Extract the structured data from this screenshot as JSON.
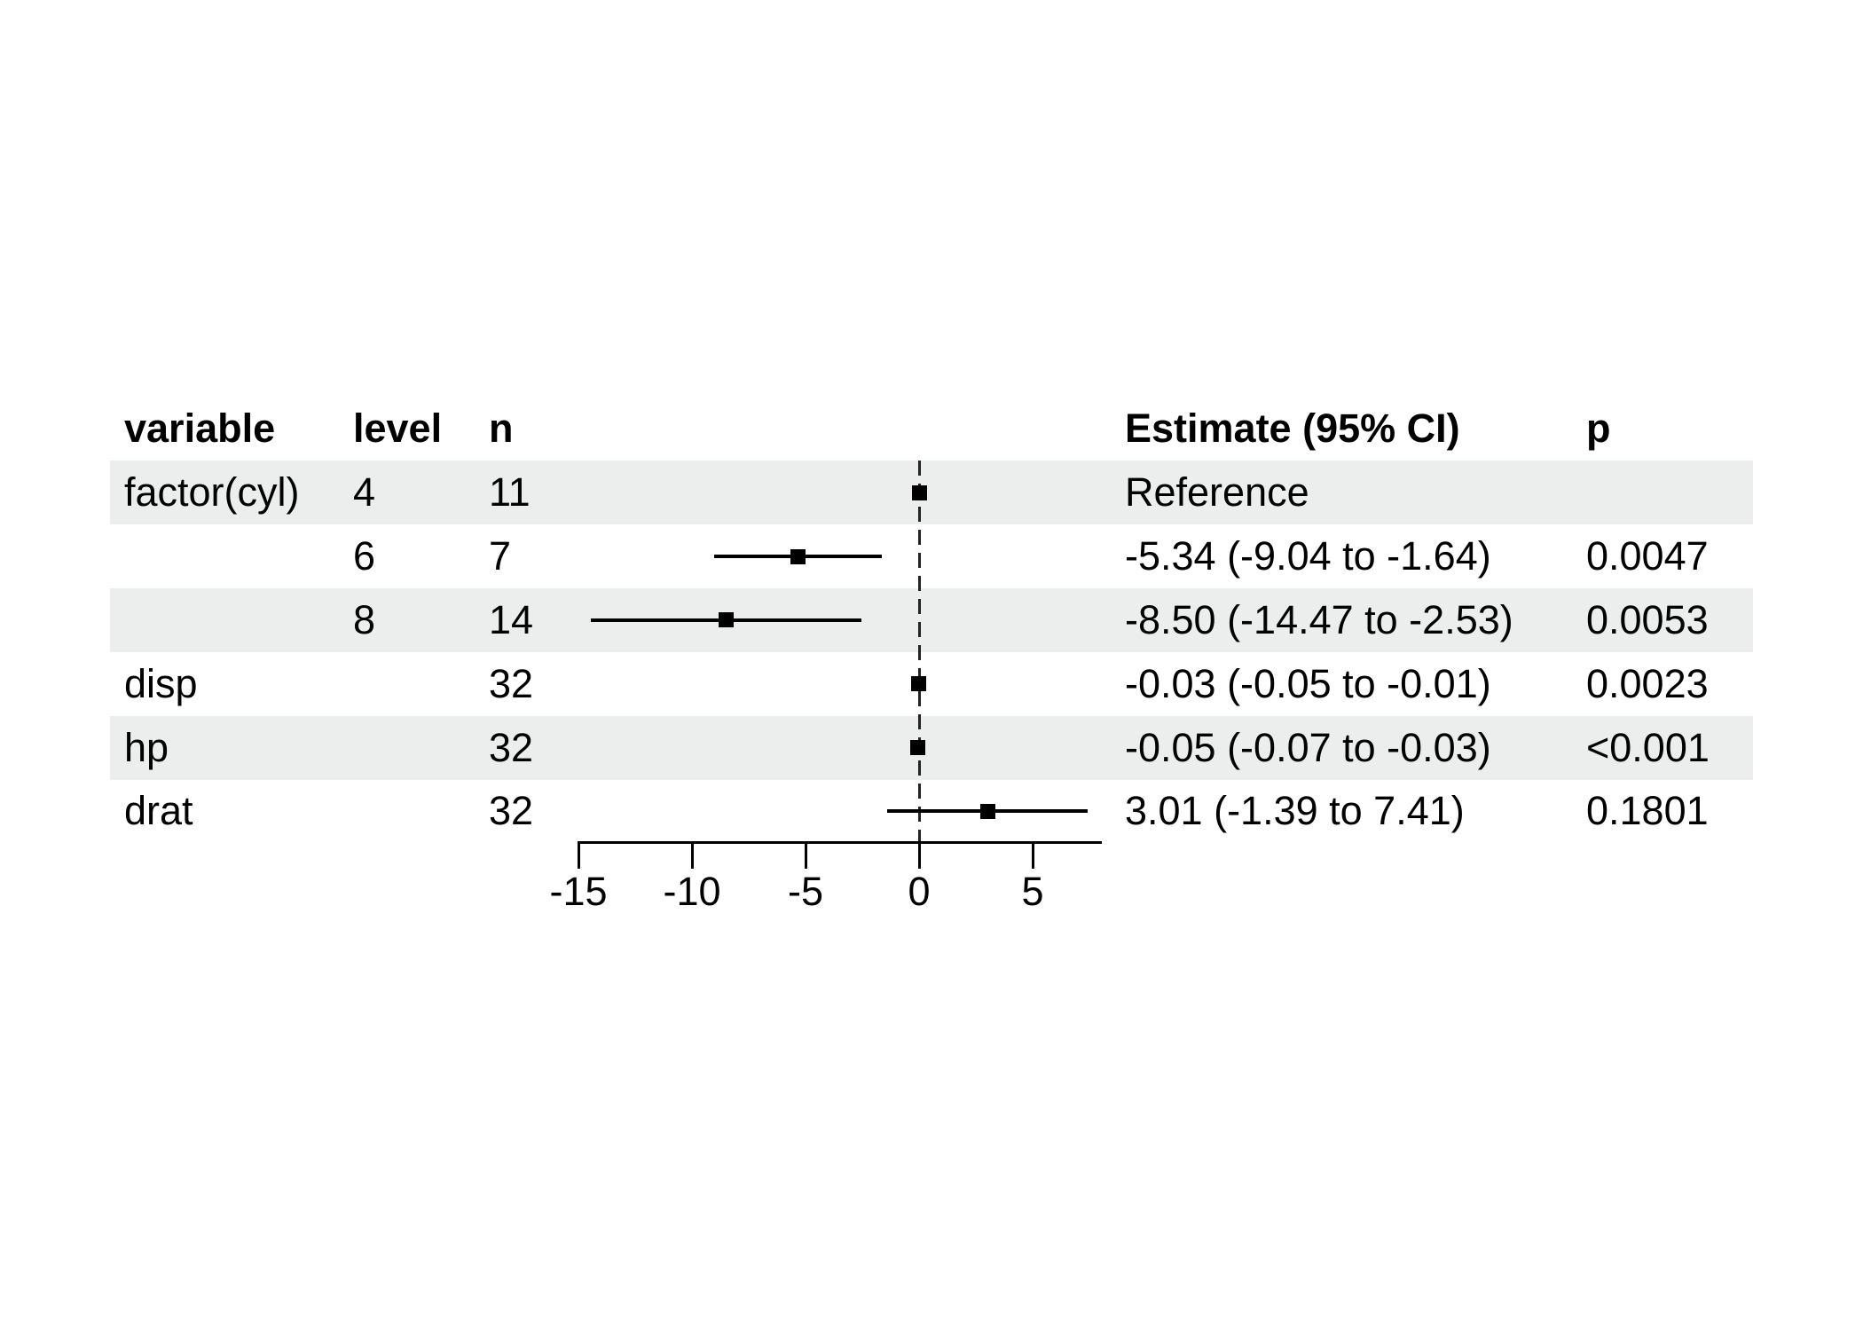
{
  "chart_data": {
    "type": "scatter",
    "variant": "forest-plot",
    "title": "",
    "xlabel": "",
    "legend": null,
    "grid": false,
    "columns": {
      "variable": "variable",
      "level": "level",
      "n": "n",
      "estimate": "Estimate (95% CI)",
      "p": "p"
    },
    "rows": [
      {
        "variable": "factor(cyl)",
        "level": "4",
        "n": "11",
        "estimate_label": "Reference",
        "p": "",
        "est": 0,
        "lo": null,
        "hi": null,
        "shaded": true,
        "reference": true
      },
      {
        "variable": "",
        "level": "6",
        "n": "7",
        "estimate_label": "-5.34 (-9.04 to -1.64)",
        "p": "0.0047",
        "est": -5.34,
        "lo": -9.04,
        "hi": -1.64,
        "shaded": false,
        "reference": false
      },
      {
        "variable": "",
        "level": "8",
        "n": "14",
        "estimate_label": "-8.50 (-14.47 to -2.53)",
        "p": "0.0053",
        "est": -8.5,
        "lo": -14.47,
        "hi": -2.53,
        "shaded": true,
        "reference": false
      },
      {
        "variable": "disp",
        "level": "",
        "n": "32",
        "estimate_label": "-0.03 (-0.05 to -0.01)",
        "p": "0.0023",
        "est": -0.03,
        "lo": -0.05,
        "hi": -0.01,
        "shaded": false,
        "reference": false
      },
      {
        "variable": "hp",
        "level": "",
        "n": "32",
        "estimate_label": "-0.05 (-0.07 to -0.03)",
        "p": "<0.001",
        "est": -0.05,
        "lo": -0.07,
        "hi": -0.03,
        "shaded": true,
        "reference": false
      },
      {
        "variable": "drat",
        "level": "",
        "n": "32",
        "estimate_label": "3.01 (-1.39 to 7.41)",
        "p": "0.1801",
        "est": 3.01,
        "lo": -1.39,
        "hi": 7.41,
        "shaded": false,
        "reference": false
      }
    ],
    "xaxis": {
      "ticks": [
        -15,
        -10,
        -5,
        0,
        5
      ],
      "tick_labels": [
        "-15",
        "-10",
        "-5",
        "0",
        "5"
      ],
      "zero_line": 0,
      "range": [
        -15,
        8
      ]
    },
    "colors": {
      "band": "#ebeeec",
      "ink": "#000000",
      "zero_line": "#222222"
    }
  }
}
